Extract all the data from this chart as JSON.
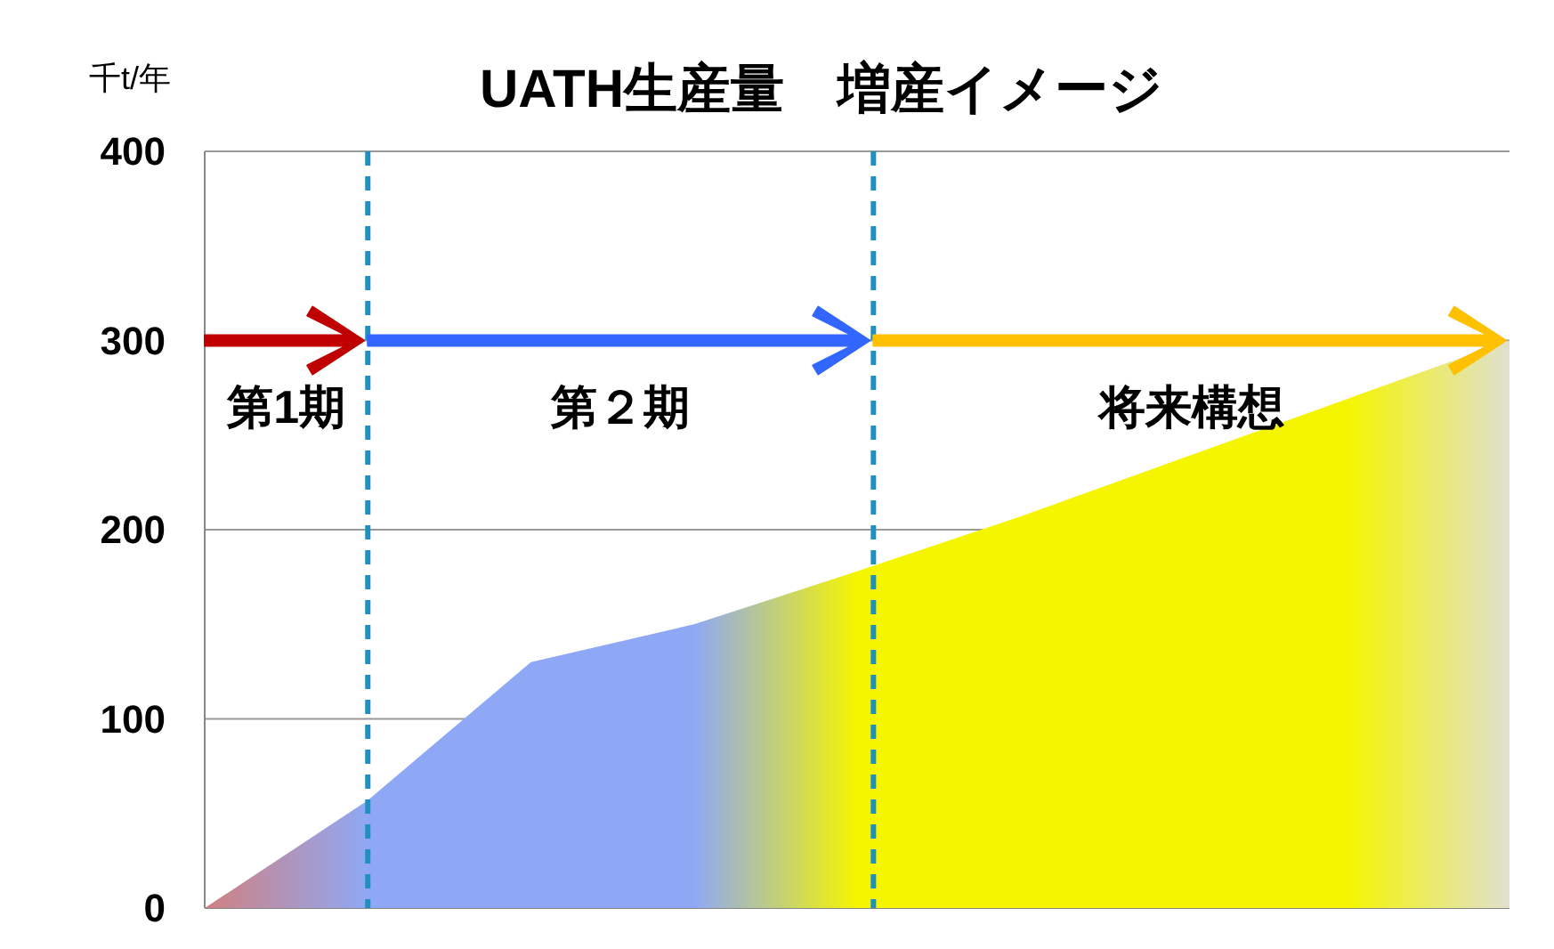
{
  "chart_data": {
    "type": "area",
    "title": "UATH生産量　増産イメージ",
    "ylabel": "千t/年",
    "categories": [
      null,
      null,
      null,
      null,
      null,
      null,
      null,
      null,
      null
    ],
    "ylim": [
      0,
      400
    ],
    "yticks": [
      0,
      100,
      200,
      300,
      400
    ],
    "grid": "y",
    "tick_labels": "y",
    "series": [
      {
        "colors": [
          "#d08080",
          "#8fa8f5",
          "#8fa8f5",
          "#8fa8f5",
          "#f5f500",
          "#f5f500",
          "#f5f500",
          "#f5f500",
          "#e0e0d0"
        ],
        "values": [
          0,
          57,
          130,
          150,
          178,
          207,
          238,
          269,
          300
        ]
      }
    ],
    "annotations": [
      "第1期",
      "第２期",
      "将来構想"
    ]
  }
}
